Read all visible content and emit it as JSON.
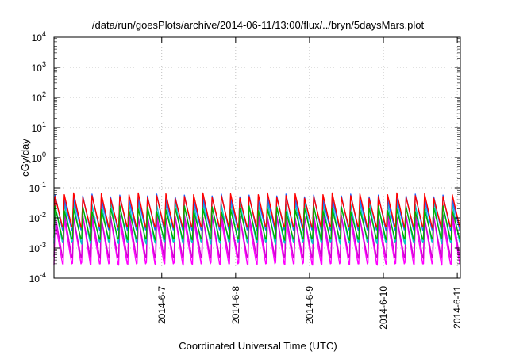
{
  "chart_data": {
    "type": "line",
    "title": "/data/run/goesPlots/archive/2014-06-11/13:00/flux/../bryn/5daysMars.plot",
    "xlabel": "Coordinated Universal Time (UTC)",
    "ylabel": "cGy/day",
    "yscale": "log",
    "ylim": [
      0.0001,
      10000
    ],
    "y_ticks": [
      {
        "base": "10",
        "exp": "-4",
        "value": 0.0001
      },
      {
        "base": "10",
        "exp": "-3",
        "value": 0.001
      },
      {
        "base": "10",
        "exp": "-2",
        "value": 0.01
      },
      {
        "base": "10",
        "exp": "-1",
        "value": 0.1
      },
      {
        "base": "10",
        "exp": "0",
        "value": 1
      },
      {
        "base": "10",
        "exp": "1",
        "value": 10
      },
      {
        "base": "10",
        "exp": "2",
        "value": 100
      },
      {
        "base": "10",
        "exp": "3",
        "value": 1000
      },
      {
        "base": "10",
        "exp": "4",
        "value": 10000
      }
    ],
    "xlim": [
      "2014-06-06T01:00",
      "2014-06-11T13:00"
    ],
    "x_ticks": [
      {
        "label": "2014-6-7",
        "value": "2014-06-07T12:00"
      },
      {
        "label": "2014-6-8",
        "value": "2014-06-08T12:00"
      },
      {
        "label": "2014-6-9",
        "value": "2014-06-09T12:00"
      },
      {
        "label": "2014-6-10",
        "value": "2014-06-10T12:00"
      },
      {
        "label": "2014-6-11",
        "value": "2014-06-11T12:00"
      }
    ],
    "grid": true,
    "legend": "none",
    "cycle_period_hours": 3,
    "series": [
      {
        "color": "#ff00ff",
        "peak": 0.01,
        "trough": 0.0003
      },
      {
        "color": "#d400d4",
        "peak": 0.012,
        "trough": 0.0005
      },
      {
        "color": "#00c8c8",
        "peak": 0.03,
        "trough": 0.0015
      },
      {
        "color": "#2060ff",
        "peak": 0.05,
        "trough": 0.004
      },
      {
        "color": "#ff0000",
        "peak": 0.055,
        "trough": 0.005
      },
      {
        "color": "#00b000",
        "peak": 0.02,
        "trough": 0.002
      }
    ]
  }
}
